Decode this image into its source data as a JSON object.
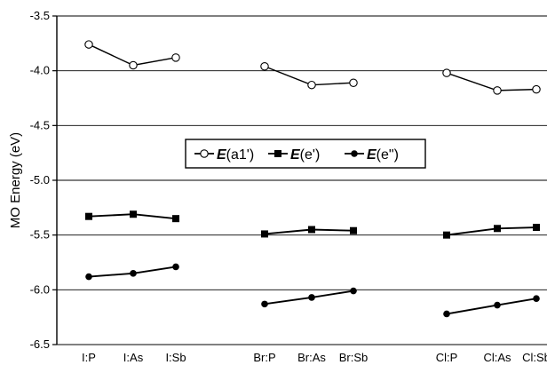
{
  "chart_data": {
    "type": "line",
    "title": "",
    "ylabel": "MO Energy (eV)",
    "xlabel": "",
    "ylim": [
      -6.5,
      -3.5
    ],
    "yticks": [
      -3.5,
      -4.0,
      -4.5,
      -5.0,
      -5.5,
      -6.0,
      -6.5
    ],
    "ytick_labels": [
      "-3.5",
      "-4.0",
      "-4.5",
      "-5.0",
      "-5.5",
      "-6.0",
      "-6.5"
    ],
    "grid": "horizontal",
    "legend_position": "center",
    "groups": [
      {
        "categories": [
          "I:P",
          "I:As",
          "I:Sb"
        ]
      },
      {
        "categories": [
          "Br:P",
          "Br:As",
          "Br:Sb"
        ]
      },
      {
        "categories": [
          "Cl:P",
          "Cl:As",
          "Cl:Sb"
        ]
      }
    ],
    "series": [
      {
        "name": "(a1')",
        "name_prefix": "E",
        "marker": "open-circle",
        "values": [
          [
            -3.76,
            -3.95,
            -3.88
          ],
          [
            -3.96,
            -4.13,
            -4.11
          ],
          [
            -4.02,
            -4.18,
            -4.17
          ]
        ]
      },
      {
        "name": "(e')",
        "name_prefix": "E",
        "marker": "filled-square",
        "values": [
          [
            -5.33,
            -5.31,
            -5.35
          ],
          [
            -5.49,
            -5.45,
            -5.46
          ],
          [
            -5.5,
            -5.44,
            -5.43
          ]
        ]
      },
      {
        "name": "(e\")",
        "name_prefix": "E",
        "marker": "filled-circle",
        "values": [
          [
            -5.88,
            -5.85,
            -5.79
          ],
          [
            -6.13,
            -6.07,
            -6.01
          ],
          [
            -6.22,
            -6.14,
            -6.08
          ]
        ]
      }
    ],
    "colors": {
      "line": "#000000",
      "grid": "#000000",
      "background": "#ffffff"
    }
  }
}
